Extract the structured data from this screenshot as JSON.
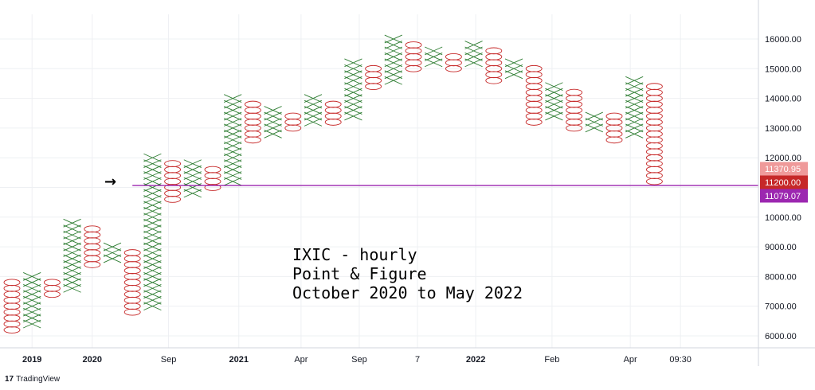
{
  "brand": {
    "logo": "17",
    "name": "TradingView"
  },
  "annotation": [
    "IXIC - hourly",
    "Point & Figure",
    "October 2020 to May 2022"
  ],
  "colors": {
    "x": "#2e7d32",
    "o": "#c62828",
    "line": "#9c27b0",
    "grid": "#eef0f3",
    "badge_high": "#ef9a9a",
    "badge_mid": "#c62828",
    "badge_low": "#9c27b0"
  },
  "chart_data": {
    "type": "point-and-figure",
    "symbol": "IXIC",
    "ylim": [
      5500,
      16900
    ],
    "y_ticks": [
      "16000.00",
      "15000.00",
      "14000.00",
      "13000.00",
      "12000.00",
      "10000.00",
      "9000.00",
      "8000.00",
      "7000.00",
      "6000.00"
    ],
    "y_tick_values": [
      16000,
      15000,
      14000,
      13000,
      12000,
      10000,
      9000,
      8000,
      7000,
      6000
    ],
    "x_labels": [
      {
        "text": "2019",
        "bold": true,
        "col": 1
      },
      {
        "text": "2020",
        "bold": true,
        "col": 4
      },
      {
        "text": "Sep",
        "bold": false,
        "col": 7.8
      },
      {
        "text": "2021",
        "bold": true,
        "col": 11.3
      },
      {
        "text": "Apr",
        "bold": false,
        "col": 14.4
      },
      {
        "text": "Sep",
        "bold": false,
        "col": 17.3
      },
      {
        "text": "7",
        "bold": false,
        "col": 20.2
      },
      {
        "text": "2022",
        "bold": true,
        "col": 23.1
      },
      {
        "text": "Feb",
        "bold": false,
        "col": 26.9
      },
      {
        "text": "Apr",
        "bold": false,
        "col": 30.8
      },
      {
        "text": "09:30",
        "bold": false,
        "col": 33.3
      }
    ],
    "box_size": 200,
    "columns": [
      {
        "type": "O",
        "high": 7800,
        "low": 6200
      },
      {
        "type": "X",
        "high": 8000,
        "low": 6400
      },
      {
        "type": "O",
        "high": 7800,
        "low": 7400
      },
      {
        "type": "X",
        "high": 9800,
        "low": 7600
      },
      {
        "type": "O",
        "high": 9600,
        "low": 8400
      },
      {
        "type": "X",
        "high": 9000,
        "low": 8600
      },
      {
        "type": "O",
        "high": 8800,
        "low": 6800
      },
      {
        "type": "X",
        "high": 12000,
        "low": 7000
      },
      {
        "type": "O",
        "high": 11800,
        "low": 10600
      },
      {
        "type": "X",
        "high": 11800,
        "low": 10800
      },
      {
        "type": "O",
        "high": 11600,
        "low": 11000
      },
      {
        "type": "X",
        "high": 14000,
        "low": 11200
      },
      {
        "type": "O",
        "high": 13800,
        "low": 12600
      },
      {
        "type": "X",
        "high": 13600,
        "low": 12800
      },
      {
        "type": "O",
        "high": 13400,
        "low": 13000
      },
      {
        "type": "X",
        "high": 14000,
        "low": 13200
      },
      {
        "type": "O",
        "high": 13800,
        "low": 13200
      },
      {
        "type": "X",
        "high": 15200,
        "low": 13400
      },
      {
        "type": "O",
        "high": 15000,
        "low": 14400
      },
      {
        "type": "X",
        "high": 16000,
        "low": 14600
      },
      {
        "type": "O",
        "high": 15800,
        "low": 15000
      },
      {
        "type": "X",
        "high": 15600,
        "low": 15200
      },
      {
        "type": "O",
        "high": 15400,
        "low": 15000
      },
      {
        "type": "X",
        "high": 15800,
        "low": 15200
      },
      {
        "type": "O",
        "high": 15600,
        "low": 14600
      },
      {
        "type": "X",
        "high": 15200,
        "low": 14800
      },
      {
        "type": "O",
        "high": 15000,
        "low": 13200
      },
      {
        "type": "X",
        "high": 14400,
        "low": 13400
      },
      {
        "type": "O",
        "high": 14200,
        "low": 13000
      },
      {
        "type": "X",
        "high": 13400,
        "low": 13000
      },
      {
        "type": "O",
        "high": 13400,
        "low": 12600
      },
      {
        "type": "X",
        "high": 14600,
        "low": 12800
      },
      {
        "type": "O",
        "high": 14400,
        "low": 11200
      }
    ],
    "horizontal_line": {
      "value": 11079.07
    },
    "price_badges": [
      {
        "label": "11370.95",
        "value": 11370.95,
        "role": "high"
      },
      {
        "label": "11200.00",
        "value": 11200.0,
        "role": "mid"
      },
      {
        "label": "11079.07",
        "value": 11079.07,
        "role": "low"
      }
    ],
    "arrow": {
      "symbol": "→",
      "value": 11200
    }
  }
}
